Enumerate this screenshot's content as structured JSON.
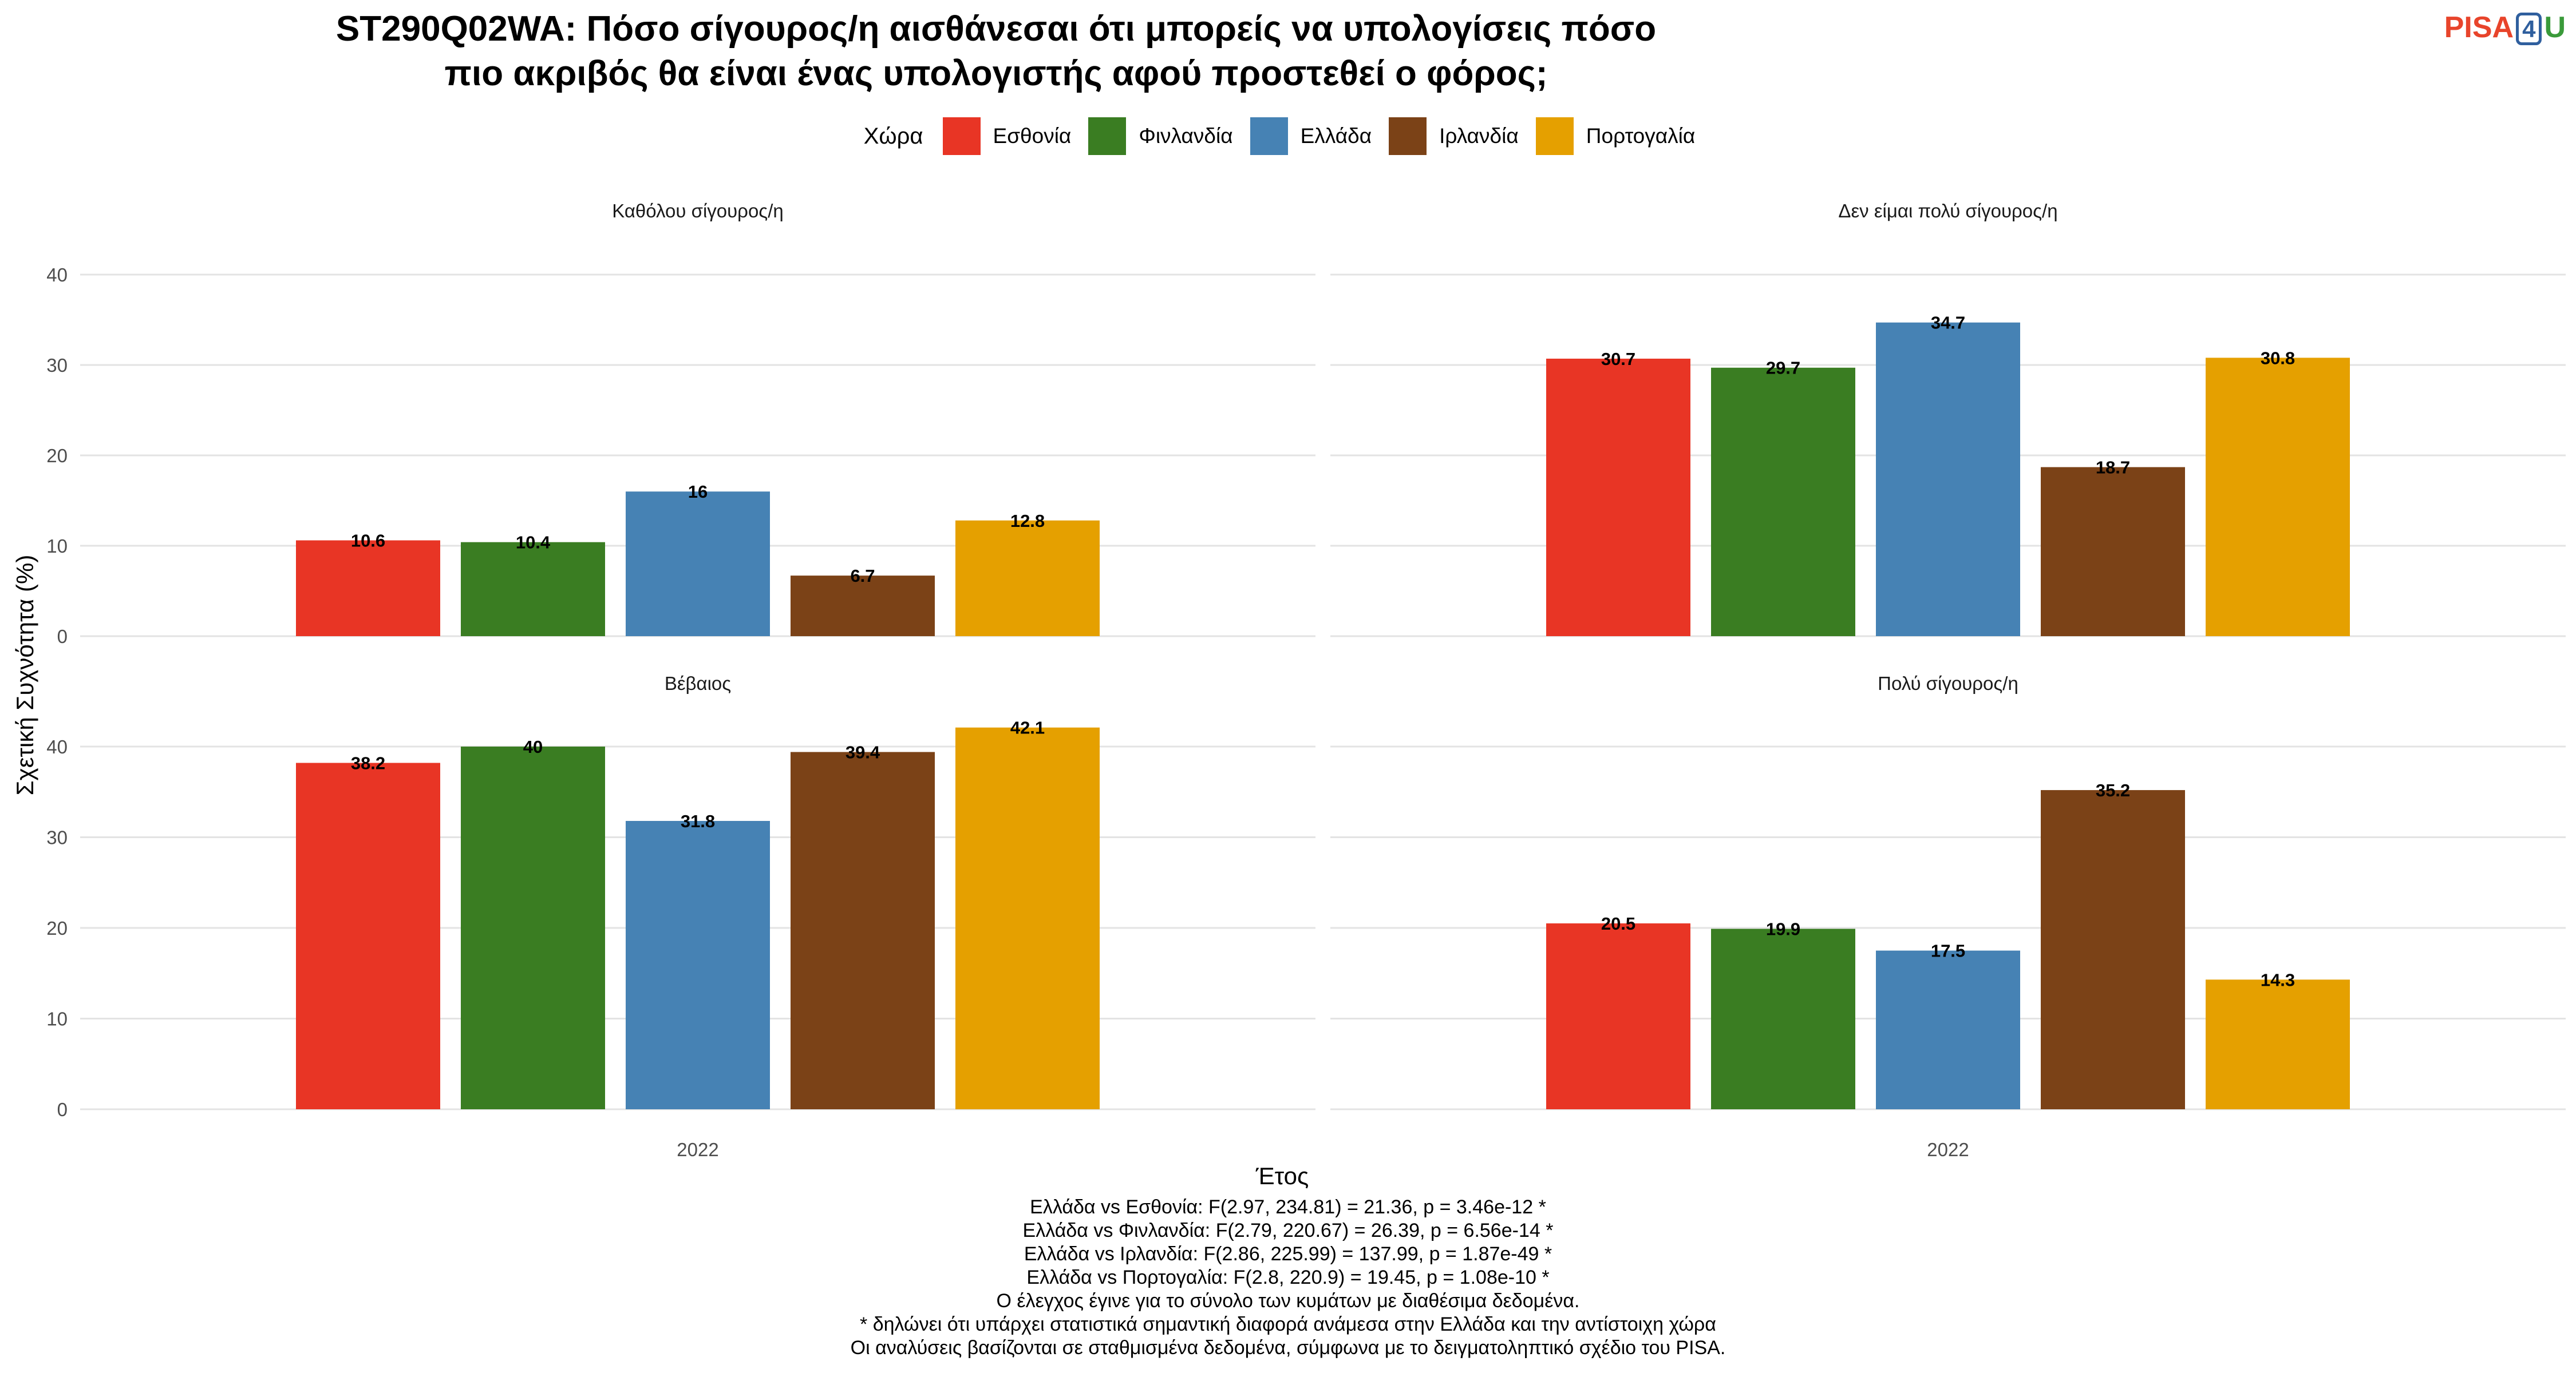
{
  "title_lines": [
    "ST290Q02WA: Πόσο σίγουρος/η αισθάνεσαι ότι μπορείς να υπολογίσεις πόσο",
    "πιο ακριβός θα είναι ένας υπολογιστής αφού προστεθεί ο φόρος;"
  ],
  "logo": {
    "part1": "PISA",
    "part2": "4",
    "part3": "U"
  },
  "legend": {
    "title": "Χώρα",
    "items": [
      {
        "label": "Εσθονία",
        "color": "#E83525"
      },
      {
        "label": "Φινλανδία",
        "color": "#3A7D22"
      },
      {
        "label": "Ελλάδα",
        "color": "#4682B4"
      },
      {
        "label": "Ιρλανδία",
        "color": "#7B4217"
      },
      {
        "label": "Πορτογαλία",
        "color": "#E5A000"
      }
    ]
  },
  "chart_data": {
    "type": "bar",
    "ylabel": "Σχετική Συχνότητα (%)",
    "xlabel": "Έτος",
    "ylim": [
      0,
      40
    ],
    "yticks": [
      0,
      10,
      20,
      30,
      40
    ],
    "categories": [
      "2022"
    ],
    "grid": true,
    "legend_position": "top",
    "panels": [
      {
        "title": "Καθόλου σίγουρος/η",
        "series": [
          {
            "name": "Εσθονία",
            "value": 10.6,
            "label": "10.6"
          },
          {
            "name": "Φινλανδία",
            "value": 10.4,
            "label": "10.4"
          },
          {
            "name": "Ελλάδα",
            "value": 16,
            "label": "16"
          },
          {
            "name": "Ιρλανδία",
            "value": 6.7,
            "label": "6.7"
          },
          {
            "name": "Πορτογαλία",
            "value": 12.8,
            "label": "12.8"
          }
        ]
      },
      {
        "title": "Δεν είμαι πολύ σίγουρος/η",
        "series": [
          {
            "name": "Εσθονία",
            "value": 30.7,
            "label": "30.7"
          },
          {
            "name": "Φινλανδία",
            "value": 29.7,
            "label": "29.7"
          },
          {
            "name": "Ελλάδα",
            "value": 34.7,
            "label": "34.7"
          },
          {
            "name": "Ιρλανδία",
            "value": 18.7,
            "label": "18.7"
          },
          {
            "name": "Πορτογαλία",
            "value": 30.8,
            "label": "30.8"
          }
        ]
      },
      {
        "title": "Βέβαιος",
        "series": [
          {
            "name": "Εσθονία",
            "value": 38.2,
            "label": "38.2"
          },
          {
            "name": "Φινλανδία",
            "value": 40,
            "label": "40"
          },
          {
            "name": "Ελλάδα",
            "value": 31.8,
            "label": "31.8"
          },
          {
            "name": "Ιρλανδία",
            "value": 39.4,
            "label": "39.4"
          },
          {
            "name": "Πορτογαλία",
            "value": 42.1,
            "label": "42.1"
          }
        ]
      },
      {
        "title": "Πολύ σίγουρος/η",
        "series": [
          {
            "name": "Εσθονία",
            "value": 20.5,
            "label": "20.5"
          },
          {
            "name": "Φινλανδία",
            "value": 19.9,
            "label": "19.9"
          },
          {
            "name": "Ελλάδα",
            "value": 17.5,
            "label": "17.5"
          },
          {
            "name": "Ιρλανδία",
            "value": 35.2,
            "label": "35.2"
          },
          {
            "name": "Πορτογαλία",
            "value": 14.3,
            "label": "14.3"
          }
        ]
      }
    ]
  },
  "notes": [
    "Ελλάδα vs Εσθονία: F(2.97, 234.81) = 21.36, p = 3.46e-12 *",
    "Ελλάδα vs Φινλανδία: F(2.79, 220.67) = 26.39, p = 6.56e-14 *",
    "Ελλάδα vs Ιρλανδία: F(2.86, 225.99) = 137.99, p = 1.87e-49 *",
    "Ελλάδα vs Πορτογαλία: F(2.8, 220.9) = 19.45, p = 1.08e-10 *",
    "Ο έλεγχος έγινε για το σύνολο των κυμάτων με διαθέσιμα δεδομένα.",
    "* δηλώνει ότι υπάρχει στατιστικά σημαντική διαφορά ανάμεσα στην Ελλάδα και την αντίστοιχη χώρα",
    "Οι αναλύσεις βασίζονται σε σταθμισμένα δεδομένα, σύμφωνα με το δειγματοληπτικό σχέδιο του PISA."
  ]
}
